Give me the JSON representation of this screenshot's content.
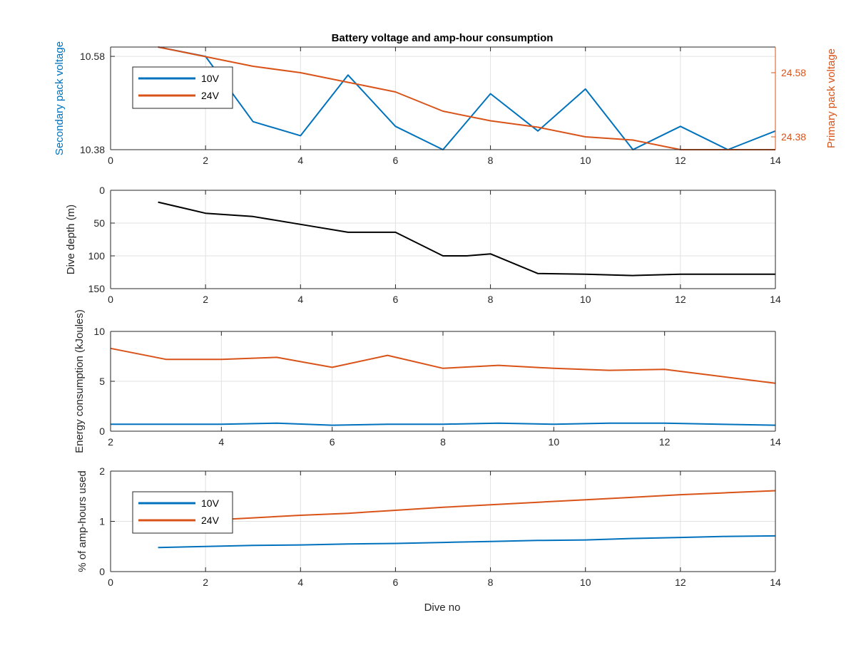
{
  "figure": {
    "title": "Battery voltage and amp-hour consumption",
    "xlabel": "Dive no"
  },
  "colors": {
    "s10v": "#0072BD",
    "s24v": "#D95319",
    "depth": "#000000",
    "axis": "#262626",
    "grid": "#e2e2e2"
  },
  "chart_data": [
    {
      "type": "line",
      "title": "Battery voltage and amp-hour consumption",
      "xlim": [
        0,
        14
      ],
      "xticks": [
        0,
        2,
        4,
        6,
        8,
        10,
        12,
        14
      ],
      "y_left": {
        "label": "Secondary pack voltage",
        "lim": [
          10.38,
          10.6
        ],
        "ticks": [
          10.38,
          10.58
        ],
        "tick_labels": [
          "10.38",
          "10.58"
        ]
      },
      "y_right": {
        "label": "Primary pack voltage",
        "lim": [
          24.34,
          24.66
        ],
        "ticks": [
          24.38,
          24.58
        ],
        "tick_labels": [
          "24.38",
          "24.58"
        ]
      },
      "legend": {
        "position": "top-left",
        "entries": [
          "10V",
          "24V"
        ]
      },
      "grid": true,
      "series": [
        {
          "name": "10V",
          "axis": "left",
          "x": [
            1,
            2,
            3,
            4,
            5,
            6,
            7,
            8,
            9,
            10,
            11,
            12,
            13,
            14
          ],
          "values": [
            10.6,
            10.58,
            10.44,
            10.41,
            10.54,
            10.43,
            10.38,
            10.5,
            10.42,
            10.51,
            10.38,
            10.43,
            10.38,
            10.42
          ]
        },
        {
          "name": "24V",
          "axis": "right",
          "x": [
            1,
            2,
            3,
            4,
            5,
            6,
            7,
            8,
            9,
            10,
            11,
            12,
            13,
            14
          ],
          "values": [
            24.66,
            24.63,
            24.6,
            24.58,
            24.55,
            24.52,
            24.46,
            24.43,
            24.41,
            24.38,
            24.37,
            24.34,
            24.34,
            24.34
          ]
        }
      ]
    },
    {
      "type": "line",
      "xlim": [
        0,
        14
      ],
      "xticks": [
        0,
        2,
        4,
        6,
        8,
        10,
        12,
        14
      ],
      "ylabel": "Dive depth (m)",
      "ylim": [
        0,
        150
      ],
      "y_reversed": true,
      "yticks": [
        0,
        50,
        100,
        150
      ],
      "grid": true,
      "series": [
        {
          "x": [
            1,
            2,
            3,
            4,
            5,
            6,
            7,
            7.5,
            8,
            9,
            10,
            11,
            12,
            13,
            14
          ],
          "values": [
            18,
            35,
            40,
            52,
            64,
            64,
            100,
            100,
            97,
            127,
            128,
            130,
            128,
            128,
            128
          ]
        }
      ]
    },
    {
      "type": "line",
      "xlim": [
        2,
        14
      ],
      "xticks": [
        2,
        4,
        6,
        8,
        10,
        12,
        14
      ],
      "ylabel": "Energy consumption (kJoules)",
      "ylim": [
        0,
        10
      ],
      "yticks": [
        0,
        5,
        10
      ],
      "grid": true,
      "series": [
        {
          "x": [
            2,
            3,
            4,
            5,
            6,
            7,
            8,
            9,
            10,
            11,
            12,
            13,
            14
          ],
          "values": [
            0.7,
            0.7,
            0.7,
            0.8,
            0.6,
            0.7,
            0.7,
            0.8,
            0.7,
            0.8,
            0.8,
            0.7,
            0.6
          ]
        },
        {
          "x": [
            2,
            3,
            4,
            5,
            6,
            7,
            8,
            9,
            10,
            11,
            12,
            13,
            14
          ],
          "values": [
            8.3,
            7.2,
            7.2,
            7.4,
            6.4,
            7.6,
            6.3,
            6.6,
            6.3,
            6.1,
            6.2,
            5.5,
            4.8
          ]
        }
      ]
    },
    {
      "type": "line",
      "xlim": [
        0,
        14
      ],
      "xticks": [
        0,
        2,
        4,
        6,
        8,
        10,
        12,
        14
      ],
      "xlabel": "Dive no",
      "ylabel": "% of amp-hours used",
      "ylim": [
        0,
        2
      ],
      "yticks": [
        0,
        1,
        2
      ],
      "legend": {
        "position": "bottom-left",
        "entries": [
          "10V",
          "24V"
        ]
      },
      "grid": true,
      "series": [
        {
          "name": "10V",
          "x": [
            1,
            2,
            3,
            4,
            5,
            6,
            7,
            8,
            9,
            10,
            11,
            12,
            13,
            14
          ],
          "values": [
            0.48,
            0.5,
            0.52,
            0.53,
            0.55,
            0.56,
            0.58,
            0.6,
            0.62,
            0.63,
            0.66,
            0.68,
            0.7,
            0.71
          ]
        },
        {
          "name": "24V",
          "x": [
            1,
            2,
            3,
            4,
            5,
            6,
            7,
            8,
            9,
            10,
            11,
            12,
            13,
            14
          ],
          "values": [
            0.98,
            1.02,
            1.07,
            1.12,
            1.16,
            1.22,
            1.28,
            1.33,
            1.38,
            1.43,
            1.48,
            1.53,
            1.57,
            1.61
          ]
        }
      ]
    }
  ]
}
